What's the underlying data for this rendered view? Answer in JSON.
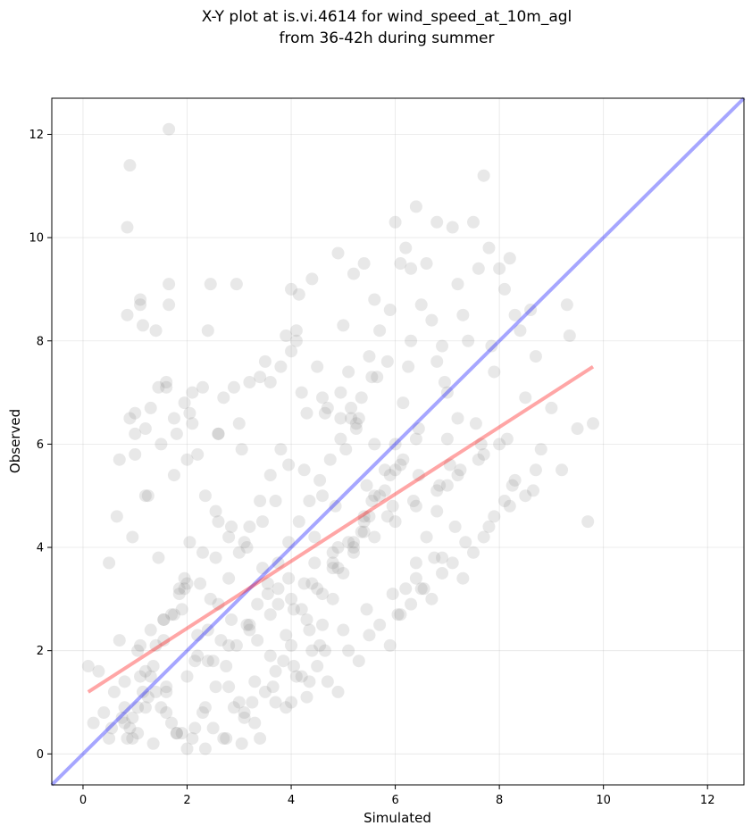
{
  "chart_data": {
    "type": "scatter",
    "title_lines": [
      "X-Y plot at is.vi.4614 for wind_speed_at_10m_agl",
      "from 36-42h during summer"
    ],
    "xlabel": "Simulated",
    "ylabel": "Observed",
    "xlim": [
      -0.6,
      12.7
    ],
    "ylim": [
      -0.6,
      12.7
    ],
    "xticks": [
      0,
      2,
      4,
      6,
      8,
      10,
      12
    ],
    "yticks": [
      0,
      2,
      4,
      6,
      8,
      10,
      12
    ],
    "grid": true,
    "colors": {
      "points": "#808080",
      "identity_line": "#0000ff",
      "fit_line": "#ff0000"
    },
    "identity_line": {
      "x": [
        -0.6,
        12.7
      ],
      "y": [
        -0.6,
        12.7
      ]
    },
    "fit_line": {
      "x": [
        0.1,
        9.8
      ],
      "y": [
        1.2,
        7.5
      ]
    },
    "points": {
      "x": [
        1.65,
        0.9,
        0.85,
        1.65,
        1.1,
        1.15,
        1.1,
        1.4,
        1.65,
        2.45,
        2.95,
        0.85,
        1.6,
        0.9,
        1.0,
        1.2,
        1.0,
        1.5,
        1.8,
        2.1,
        2.9,
        2.4,
        2.3,
        1.95,
        1.75,
        2.1,
        3.5,
        2.0,
        1.2,
        2.6,
        3.0,
        2.7,
        3.2,
        3.4,
        3.8,
        4.0,
        4.15,
        4.1,
        4.4,
        4.5,
        4.2,
        3.9,
        3.6,
        4.6,
        4.3,
        4.0,
        4.1,
        4.7,
        4.9,
        5.2,
        5.0,
        5.1,
        5.4,
        5.6,
        5.7,
        5.5,
        5.9,
        5.3,
        6.0,
        6.1,
        6.2,
        6.3,
        6.4,
        6.5,
        6.6,
        6.7,
        6.9,
        6.8,
        7.0,
        7.1,
        7.2,
        7.3,
        7.4,
        7.5,
        7.6,
        7.7,
        7.8,
        7.9,
        8.0,
        8.1,
        8.2,
        8.3,
        8.4,
        8.5,
        8.6,
        8.7,
        9.0,
        9.2,
        9.3,
        9.35,
        9.5,
        9.7,
        9.8,
        7.85,
        6.3,
        6.25,
        6.8,
        6.95,
        7.2,
        7.65,
        7.05,
        6.15,
        5.9,
        5.45,
        4.85,
        5.05,
        4.95,
        4.6,
        4.45,
        3.95,
        3.7,
        3.45,
        3.1,
        2.8,
        2.55,
        2.25,
        1.85,
        1.55,
        1.3,
        1.05,
        0.8,
        0.6,
        0.4,
        0.2,
        0.1,
        0.3,
        0.5,
        0.7,
        0.9,
        1.1,
        1.3,
        1.5,
        1.7,
        1.9,
        2.1,
        2.3,
        2.5,
        2.7,
        2.9,
        3.1,
        3.3,
        3.5,
        3.7,
        3.9,
        4.1,
        4.3,
        4.5,
        4.7,
        4.9,
        5.1,
        5.3,
        5.5,
        5.7,
        5.9,
        6.1,
        6.3,
        6.5,
        6.7,
        6.9,
        7.1,
        7.3,
        7.5,
        7.7,
        7.9,
        8.1,
        8.3,
        8.5,
        8.7,
        8.8,
        8.25,
        7.55,
        7.0,
        6.45,
        5.95,
        5.4,
        4.8,
        4.25,
        3.75,
        3.2,
        2.65,
        2.15,
        1.6,
        1.05,
        0.55,
        0.85,
        1.35,
        1.8,
        2.35,
        2.75,
        3.25,
        3.65,
        4.05,
        4.55,
        5.0,
        5.45,
        5.95,
        6.4,
        6.9,
        7.35,
        7.8,
        8.2,
        8.65,
        6.45,
        6.15,
        5.6,
        5.25,
        4.65,
        4.35,
        3.85,
        3.35,
        2.85,
        2.45,
        1.95,
        1.45,
        0.95,
        0.65,
        1.25,
        1.75,
        2.2,
        2.6,
        3.05,
        3.55,
        3.95,
        4.45,
        4.9,
        5.35,
        5.85,
        6.35,
        6.85,
        7.25,
        7.7,
        8.15,
        5.25,
        5.15,
        4.95,
        5.65,
        5.85,
        6.05,
        6.55,
        6.75,
        7.15,
        5.55,
        4.25,
        3.05,
        2.05,
        1.45,
        0.95,
        0.75,
        1.05,
        1.25,
        1.55,
        1.85,
        2.05,
        2.35,
        2.55,
        2.85,
        3.15,
        3.45,
        3.75,
        4.05,
        4.35,
        4.65,
        1.2,
        1.4,
        1.6,
        1.8,
        2.0,
        2.2,
        2.4,
        2.6,
        2.8,
        3.0,
        3.2,
        3.4,
        3.6,
        3.8,
        4.0,
        4.2,
        4.4,
        4.6,
        4.8,
        5.0,
        5.2,
        5.4,
        5.6,
        5.8,
        6.0,
        6.2,
        6.4,
        6.6,
        6.8,
        7.0,
        0.7,
        1.0,
        1.3,
        1.6,
        1.9,
        2.2,
        2.5,
        2.8,
        3.1,
        3.4,
        3.7,
        4.0,
        4.3,
        4.6,
        4.9,
        5.2,
        5.5,
        5.8,
        6.1,
        6.4,
        0.8,
        1.2,
        1.6,
        2.0,
        2.4,
        2.8,
        3.2,
        3.6,
        4.0,
        4.4,
        4.8,
        5.2,
        5.6,
        6.0,
        6.4,
        6.8,
        7.2,
        7.6,
        8.0,
        2.6,
        2.3,
        2.0,
        1.7,
        1.4,
        1.1,
        0.8,
        0.5,
        3.0,
        3.3,
        3.6,
        3.9,
        4.2,
        4.5,
        4.8,
        5.1,
        5.4,
        5.7,
        6.0,
        0.95,
        1.15,
        1.35,
        1.55,
        1.75,
        1.95,
        2.15,
        2.35,
        2.55,
        2.75,
        2.95,
        3.15,
        3.35,
        3.55,
        3.75,
        3.95,
        4.15,
        4.35,
        4.55,
        4.75,
        4.95,
        5.15,
        5.35,
        5.55
      ],
      "y": [
        12.1,
        11.4,
        10.2,
        9.1,
        8.8,
        8.3,
        8.7,
        8.2,
        8.7,
        9.1,
        9.1,
        8.5,
        7.1,
        6.5,
        6.6,
        6.3,
        5.8,
        6.0,
        6.2,
        7.0,
        7.1,
        8.2,
        7.1,
        6.8,
        6.5,
        6.4,
        7.6,
        5.7,
        5.0,
        6.2,
        6.4,
        6.9,
        7.2,
        7.3,
        7.5,
        9.0,
        8.9,
        8.2,
        9.2,
        7.5,
        7.0,
        8.1,
        7.2,
        6.9,
        6.6,
        7.8,
        8.0,
        6.7,
        9.7,
        9.3,
        8.3,
        7.4,
        9.5,
        8.8,
        8.2,
        7.7,
        8.6,
        6.5,
        10.3,
        9.5,
        9.8,
        9.4,
        10.6,
        8.7,
        9.5,
        8.4,
        7.9,
        10.3,
        7.0,
        10.2,
        9.1,
        8.5,
        8.0,
        10.3,
        9.4,
        11.2,
        9.8,
        7.4,
        9.4,
        9.0,
        9.6,
        8.5,
        8.2,
        6.9,
        8.6,
        7.7,
        6.7,
        5.5,
        8.7,
        8.1,
        6.3,
        4.5,
        6.4,
        7.9,
        8.0,
        7.5,
        7.6,
        7.2,
        6.5,
        6.0,
        5.6,
        6.8,
        5.4,
        5.2,
        4.8,
        5.9,
        6.5,
        5.0,
        4.2,
        5.6,
        4.9,
        4.5,
        4.1,
        4.2,
        3.8,
        3.3,
        3.1,
        2.6,
        2.4,
        2.0,
        1.4,
        1.2,
        0.8,
        0.6,
        1.7,
        1.6,
        3.7,
        2.2,
        0.5,
        2.1,
        1.5,
        0.9,
        0.6,
        0.4,
        0.3,
        0.8,
        0.5,
        0.3,
        0.9,
        0.7,
        0.6,
        1.2,
        1.0,
        0.9,
        1.5,
        1.1,
        1.7,
        1.4,
        1.2,
        2.0,
        1.8,
        2.3,
        2.5,
        2.1,
        2.7,
        2.9,
        3.2,
        3.0,
        3.5,
        3.7,
        3.4,
        3.9,
        4.2,
        4.6,
        4.9,
        5.3,
        5.0,
        5.5,
        5.9,
        5.2,
        6.4,
        6.1,
        6.3,
        4.8,
        4.3,
        3.9,
        3.3,
        2.9,
        2.5,
        2.2,
        1.8,
        1.3,
        0.9,
        0.5,
        0.3,
        0.2,
        0.4,
        0.1,
        0.3,
        1.0,
        1.3,
        1.7,
        2.1,
        2.4,
        2.8,
        3.1,
        3.4,
        3.8,
        4.1,
        4.4,
        4.8,
        5.1,
        5.4,
        5.7,
        6.0,
        6.3,
        6.6,
        1.4,
        1.8,
        2.2,
        2.6,
        3.0,
        3.4,
        3.8,
        4.2,
        4.6,
        5.0,
        5.4,
        5.8,
        6.2,
        0.2,
        3.1,
        3.4,
        3.7,
        4.0,
        4.3,
        4.6,
        4.9,
        5.2,
        5.5,
        5.8,
        6.1,
        6.4,
        6.7,
        7.0,
        7.3,
        7.6,
        2.7,
        3.2,
        3.8,
        4.4,
        4.9,
        5.5,
        5.9,
        6.6,
        7.1,
        0.3,
        0.7,
        0.4,
        1.1,
        2.6,
        3.2,
        4.1,
        5.0,
        4.7,
        4.4,
        4.0,
        3.6,
        3.2,
        2.8,
        2.4,
        2.0,
        1.6,
        1.2,
        0.8,
        0.4,
        0.1,
        1.9,
        2.4,
        2.9,
        3.4,
        3.9,
        4.4,
        4.9,
        5.4,
        5.9,
        1.0,
        1.5,
        2.0,
        2.5,
        3.0,
        3.5,
        4.0,
        4.5,
        5.0,
        5.5,
        6.0,
        3.2,
        3.7,
        4.2,
        4.7,
        5.2,
        5.7,
        6.2,
        6.7,
        7.2,
        2.8,
        2.3,
        1.8,
        1.3,
        0.8,
        0.3,
        1.6,
        2.1,
        2.6,
        3.1,
        3.6,
        4.1,
        4.6,
        5.1,
        5.6,
        6.1,
        0.6,
        0.9,
        1.2,
        1.5,
        1.8,
        2.1,
        2.4,
        2.7,
        3.0,
        3.3,
        3.6,
        3.9,
        4.2,
        4.5,
        4.8,
        5.1,
        5.4,
        5.7,
        6.0,
        4.5,
        3.9,
        3.3,
        2.7,
        2.1,
        1.5,
        0.9,
        0.3,
        1.0,
        1.4,
        1.9,
        2.3,
        2.8,
        3.2,
        3.7,
        4.1,
        4.6,
        5.0,
        5.5,
        0.7,
        1.2,
        1.7,
        2.2,
        2.7,
        3.2,
        0.5,
        0.9,
        1.3,
        1.7,
        2.1,
        2.5,
        2.9,
        3.3,
        3.7,
        4.1,
        4.5,
        4.9,
        5.3,
        5.7,
        6.1,
        6.5,
        6.9,
        7.3
      ]
    }
  }
}
